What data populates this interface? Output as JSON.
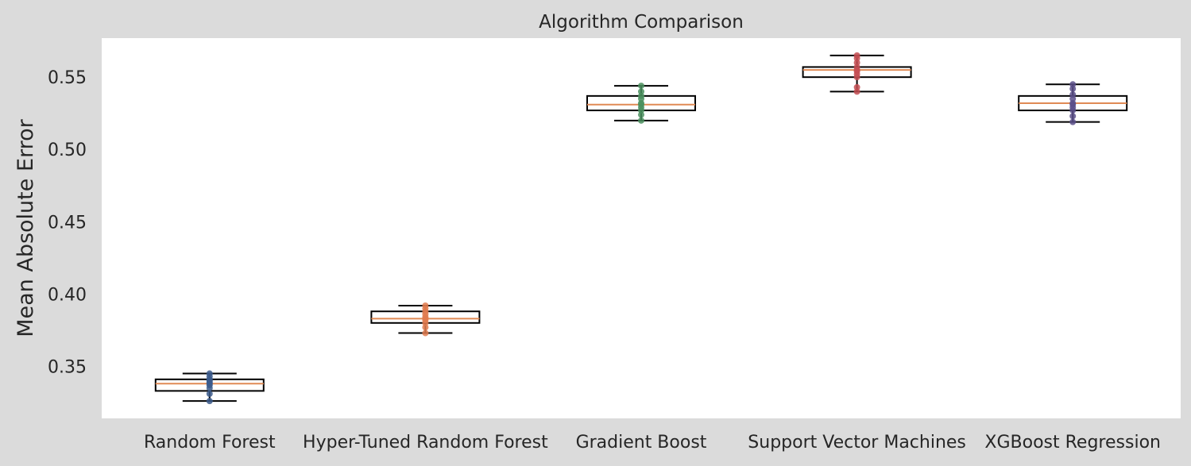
{
  "chart_data": {
    "type": "box",
    "title": "Algorithm Comparison",
    "xlabel": "",
    "ylabel": "Mean Absolute Error",
    "ylim": [
      0.314,
      0.577
    ],
    "yticks": [
      0.35,
      0.4,
      0.45,
      0.5,
      0.55
    ],
    "ytick_labels": [
      "0.35",
      "0.40",
      "0.45",
      "0.50",
      "0.55"
    ],
    "grid": false,
    "categories": [
      "Random Forest",
      "Hyper-Tuned Random Forest",
      "Gradient Boost",
      "Support Vector Machines",
      "XGBoost Regression"
    ],
    "boxes": [
      {
        "whisker_low": 0.326,
        "q1": 0.333,
        "median": 0.338,
        "q3": 0.341,
        "whisker_high": 0.345,
        "points": [
          0.326,
          0.331,
          0.335,
          0.337,
          0.338,
          0.339,
          0.34,
          0.341,
          0.343,
          0.345
        ]
      },
      {
        "whisker_low": 0.373,
        "q1": 0.38,
        "median": 0.383,
        "q3": 0.388,
        "whisker_high": 0.392,
        "points": [
          0.373,
          0.377,
          0.38,
          0.382,
          0.383,
          0.384,
          0.386,
          0.388,
          0.39,
          0.392
        ]
      },
      {
        "whisker_low": 0.52,
        "q1": 0.527,
        "median": 0.531,
        "q3": 0.537,
        "whisker_high": 0.544,
        "points": [
          0.52,
          0.524,
          0.527,
          0.529,
          0.531,
          0.532,
          0.535,
          0.537,
          0.54,
          0.544
        ]
      },
      {
        "whisker_low": 0.54,
        "q1": 0.55,
        "median": 0.555,
        "q3": 0.557,
        "whisker_high": 0.565,
        "points": [
          0.54,
          0.543,
          0.55,
          0.552,
          0.554,
          0.555,
          0.557,
          0.56,
          0.563,
          0.565
        ]
      },
      {
        "whisker_low": 0.519,
        "q1": 0.527,
        "median": 0.532,
        "q3": 0.537,
        "whisker_high": 0.545,
        "points": [
          0.519,
          0.523,
          0.527,
          0.529,
          0.531,
          0.532,
          0.535,
          0.538,
          0.542,
          0.545
        ]
      }
    ],
    "point_colors": [
      "#3b5b8c",
      "#e07b4f",
      "#4a8f5e",
      "#c44e52",
      "#5a4f8a"
    ],
    "median_color": "#e08a55",
    "box_color": "#000000",
    "plot_background": "#ffffff",
    "figure_background": "#dbdbdb"
  }
}
